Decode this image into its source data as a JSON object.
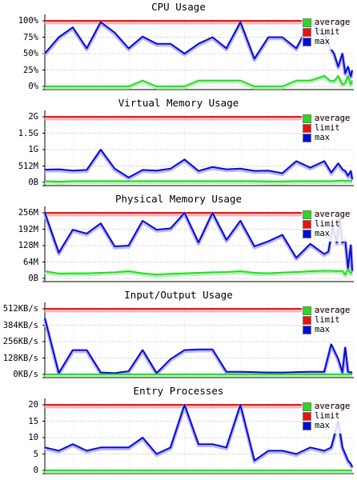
{
  "colors": {
    "average": "#22dd22",
    "limit": "#ee1111",
    "max": "#0a0ad8",
    "limit_glow": "#f2b8b8",
    "grid": "#b8b8b8"
  },
  "legend": {
    "average": "average",
    "limit": "limit",
    "max": "max"
  },
  "chart_data": [
    {
      "type": "line",
      "title": "CPU Usage",
      "yticks": [
        "0%",
        "25%",
        "50%",
        "75%",
        "100%"
      ],
      "ylim": [
        0,
        100
      ],
      "limit": 100,
      "series": [
        {
          "name": "max",
          "x": [
            0,
            1,
            2,
            3,
            4,
            5,
            6,
            7,
            8,
            9,
            10,
            11,
            12,
            13,
            14,
            15,
            16,
            17,
            18,
            19,
            20,
            20.4,
            20.7,
            21,
            21.3,
            21.5,
            21.7,
            21.9,
            22
          ],
          "y": [
            50,
            75,
            90,
            58,
            98,
            82,
            58,
            76,
            65,
            65,
            50,
            65,
            75,
            58,
            98,
            42,
            75,
            75,
            58,
            98,
            80,
            60,
            50,
            30,
            50,
            20,
            30,
            15,
            25
          ]
        },
        {
          "name": "average",
          "x": [
            0,
            1,
            2,
            3,
            4,
            5,
            6,
            7,
            8,
            9,
            10,
            11,
            12,
            13,
            14,
            15,
            16,
            17,
            18,
            19,
            20,
            20.4,
            20.7,
            21,
            21.3,
            21.5,
            21.7,
            21.9,
            22
          ],
          "y": [
            0,
            0,
            0,
            0,
            0,
            0,
            0,
            9,
            0,
            0,
            0,
            9,
            9,
            9,
            9,
            0,
            0,
            0,
            9,
            9,
            16,
            9,
            8,
            16,
            3,
            5,
            16,
            3,
            9
          ]
        }
      ]
    },
    {
      "type": "line",
      "title": "Virtual Memory Usage",
      "yticks": [
        "0B",
        "512M",
        "1G",
        "1.5G",
        "2G"
      ],
      "ylim": [
        0,
        2
      ],
      "limit": 2,
      "series": [
        {
          "name": "max",
          "x": [
            0,
            1,
            2,
            3,
            4,
            5,
            6,
            7,
            8,
            9,
            10,
            11,
            12,
            13,
            14,
            15,
            16,
            17,
            18,
            19,
            20,
            20.5,
            21,
            21.3,
            21.5,
            21.7,
            21.9,
            22
          ],
          "y": [
            0.39,
            0.4,
            0.36,
            0.38,
            1.0,
            0.42,
            0.15,
            0.38,
            0.36,
            0.42,
            0.7,
            0.35,
            0.47,
            0.4,
            0.42,
            0.35,
            0.36,
            0.28,
            0.65,
            0.45,
            0.65,
            0.3,
            0.58,
            0.4,
            0.35,
            0.2,
            0.35,
            0.1
          ]
        },
        {
          "name": "average",
          "x": [
            0,
            1,
            2,
            3,
            4,
            5,
            6,
            7,
            8,
            9,
            10,
            11,
            12,
            13,
            14,
            15,
            16,
            17,
            18,
            19,
            20,
            20.5,
            21,
            21.3,
            21.5,
            21.7,
            21.9,
            22
          ],
          "y": [
            0.04,
            0.02,
            0.04,
            0.04,
            0.04,
            0.04,
            0.04,
            0.04,
            0.04,
            0.04,
            0.04,
            0.04,
            0.04,
            0.04,
            0.04,
            0.04,
            0.03,
            0.03,
            0.04,
            0.04,
            0.04,
            0.04,
            0.05,
            0.06,
            0.04,
            0.06,
            0.04,
            0.05
          ]
        }
      ]
    },
    {
      "type": "line",
      "title": "Physical Memory Usage",
      "yticks": [
        "0B",
        "64M",
        "128M",
        "192M",
        "256M"
      ],
      "ylim": [
        0,
        256
      ],
      "limit": 256,
      "series": [
        {
          "name": "max",
          "x": [
            0,
            1,
            2,
            3,
            4,
            5,
            6,
            7,
            8,
            9,
            10,
            11,
            12,
            13,
            14,
            15,
            16,
            17,
            18,
            19,
            20,
            20.3,
            20.6,
            20.9,
            21.1,
            21.3,
            21.5,
            21.7,
            21.9,
            22
          ],
          "y": [
            256,
            100,
            190,
            175,
            215,
            125,
            128,
            225,
            190,
            195,
            256,
            140,
            256,
            150,
            225,
            125,
            145,
            170,
            80,
            135,
            95,
            105,
            200,
            140,
            235,
            140,
            150,
            40,
            130,
            30
          ]
        },
        {
          "name": "average",
          "x": [
            0,
            1,
            2,
            3,
            4,
            5,
            6,
            7,
            8,
            9,
            10,
            11,
            12,
            13,
            14,
            15,
            16,
            17,
            18,
            19,
            20,
            20.5,
            21,
            21.3,
            21.5,
            21.7,
            21.9,
            22
          ],
          "y": [
            28,
            19,
            20,
            20,
            22,
            24,
            28,
            20,
            15,
            18,
            20,
            22,
            24,
            25,
            28,
            22,
            20,
            23,
            25,
            28,
            30,
            30,
            28,
            30,
            15,
            35,
            20,
            25
          ]
        }
      ]
    },
    {
      "type": "line",
      "title": "Input/Output Usage",
      "yticks": [
        "0KB/s",
        "128KB/s",
        "256KB/s",
        "384KB/s",
        "512KB/s"
      ],
      "ylim": [
        0,
        512
      ],
      "limit": 512,
      "series": [
        {
          "name": "max",
          "x": [
            0,
            1,
            2,
            3,
            4,
            5,
            6,
            7,
            8,
            9,
            10,
            11,
            12,
            13,
            14,
            15,
            16,
            17,
            18,
            19,
            20,
            20.5,
            21,
            21.3,
            21.5,
            21.7,
            21.9,
            22
          ],
          "y": [
            440,
            10,
            190,
            190,
            15,
            10,
            25,
            190,
            10,
            120,
            190,
            195,
            195,
            20,
            20,
            18,
            15,
            15,
            18,
            20,
            20,
            235,
            120,
            15,
            210,
            20,
            15,
            20
          ]
        },
        {
          "name": "average",
          "x": [
            0,
            22
          ],
          "y": [
            1,
            1
          ]
        }
      ]
    },
    {
      "type": "line",
      "title": "Entry Processes",
      "yticks": [
        "0",
        "5",
        "10",
        "15",
        "20"
      ],
      "ylim": [
        0,
        20
      ],
      "limit": 20,
      "series": [
        {
          "name": "max",
          "x": [
            0,
            1,
            2,
            3,
            4,
            5,
            6,
            7,
            8,
            9,
            10,
            11,
            12,
            13,
            14,
            15,
            16,
            17,
            18,
            19,
            20,
            20.5,
            21,
            21.3,
            21.5,
            21.7,
            21.9,
            22
          ],
          "y": [
            7,
            6,
            8,
            6,
            7,
            7,
            7,
            10,
            5,
            7,
            20,
            8,
            8,
            7,
            20,
            3,
            6,
            6,
            5,
            7,
            6,
            7,
            15,
            7,
            5,
            3,
            2,
            1
          ]
        },
        {
          "name": "average",
          "x": [
            0,
            22
          ],
          "y": [
            0,
            0
          ]
        }
      ]
    }
  ]
}
